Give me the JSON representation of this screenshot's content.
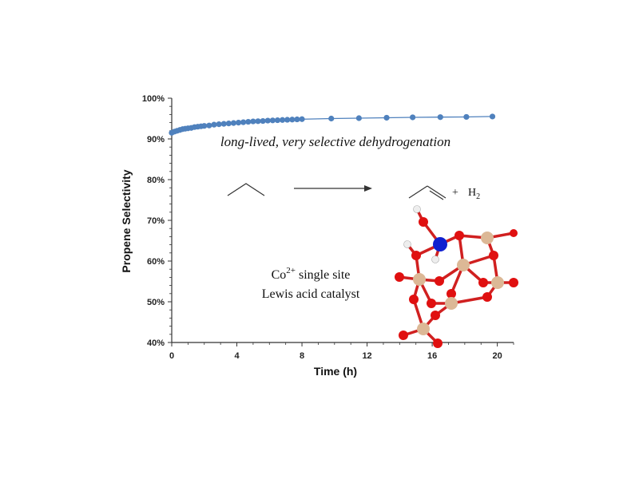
{
  "chart_data": {
    "type": "scatter",
    "xlabel": "Time (h)",
    "ylabel": "Propene Selectivity",
    "xlim": [
      0,
      21
    ],
    "ylim": [
      40,
      100
    ],
    "x_ticks": [
      0,
      4,
      8,
      12,
      16,
      20
    ],
    "y_ticks": [
      40,
      50,
      60,
      70,
      80,
      90,
      100
    ],
    "y_tick_suffix": "%",
    "grid": false,
    "series": [
      {
        "color": "#4f81bd",
        "x": [
          0.0,
          0.17,
          0.33,
          0.5,
          0.67,
          0.83,
          1.0,
          1.2,
          1.4,
          1.6,
          1.8,
          2.0,
          2.3,
          2.6,
          2.9,
          3.2,
          3.5,
          3.8,
          4.1,
          4.4,
          4.7,
          5.0,
          5.3,
          5.6,
          5.9,
          6.2,
          6.5,
          6.8,
          7.1,
          7.4,
          7.7,
          8.0,
          9.8,
          11.5,
          13.2,
          14.8,
          16.5,
          18.1,
          19.7
        ],
        "y": [
          91.5,
          91.8,
          92.0,
          92.2,
          92.4,
          92.5,
          92.6,
          92.7,
          92.9,
          93.0,
          93.1,
          93.2,
          93.3,
          93.5,
          93.6,
          93.7,
          93.8,
          93.9,
          94.0,
          94.1,
          94.2,
          94.3,
          94.35,
          94.4,
          94.5,
          94.55,
          94.6,
          94.65,
          94.7,
          94.75,
          94.8,
          94.85,
          95.0,
          95.1,
          95.2,
          95.3,
          95.35,
          95.4,
          95.5
        ]
      }
    ]
  },
  "annotations": {
    "headline": "long-lived, very selective dehydrogenation",
    "catalyst_line1_prefix": "Co",
    "catalyst_line1_superscript": "2+",
    "catalyst_line1_suffix": " single site",
    "catalyst_line2": "Lewis acid catalyst",
    "product_plus": "+",
    "h2_prefix": "H",
    "h2_subscript": "2"
  },
  "molecule_colors": {
    "oxygen": "#e01010",
    "silicon": "#dcb896",
    "cobalt": "#1020d0",
    "hydrogen": "#eeeeee",
    "bond": "#d02020"
  }
}
